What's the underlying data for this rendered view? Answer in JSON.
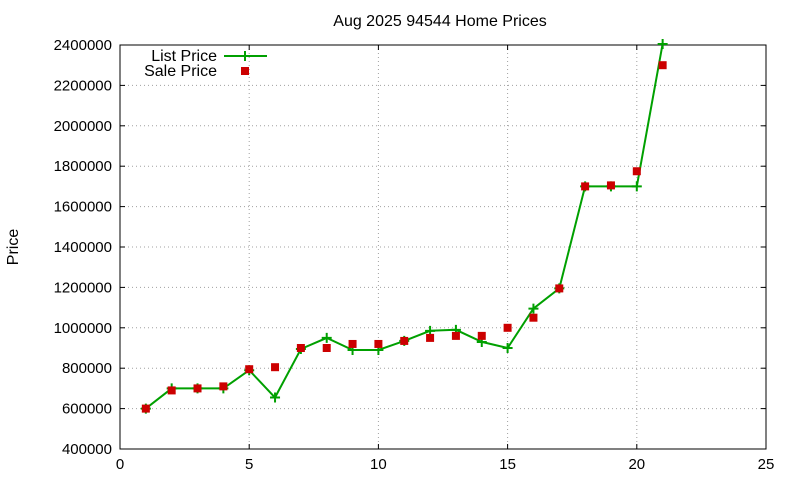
{
  "chart_data": {
    "type": "line",
    "title": "Aug 2025 94544 Home Prices",
    "xlabel": "",
    "ylabel": "Price",
    "xlim": [
      0,
      25
    ],
    "ylim": [
      400000,
      2400000
    ],
    "xticks": [
      "0",
      "5",
      "10",
      "15",
      "20",
      "25"
    ],
    "yticks": [
      "400000",
      "600000",
      "800000",
      "1000000",
      "1200000",
      "1400000",
      "1600000",
      "1800000",
      "2000000",
      "2200000",
      "2400000"
    ],
    "grid": true,
    "legend_position": "top-left",
    "series": [
      {
        "name": "List Price",
        "style": "line+plus",
        "color": "#00a000",
        "x": [
          1,
          2,
          3,
          4,
          5,
          6,
          7,
          8,
          9,
          10,
          11,
          12,
          13,
          14,
          15,
          16,
          17,
          18,
          19,
          20,
          21
        ],
        "y": [
          600000,
          700000,
          700000,
          700000,
          790000,
          655000,
          895000,
          950000,
          890000,
          890000,
          935000,
          985000,
          990000,
          930000,
          900000,
          1095000,
          1195000,
          1700000,
          1700000,
          1700000,
          2405000
        ]
      },
      {
        "name": "Sale Price",
        "style": "square",
        "color": "#cc0000",
        "x": [
          1,
          2,
          3,
          4,
          5,
          6,
          7,
          8,
          9,
          10,
          11,
          12,
          13,
          14,
          15,
          16,
          17,
          18,
          19,
          20,
          21
        ],
        "y": [
          600000,
          690000,
          700000,
          710000,
          795000,
          805000,
          900000,
          900000,
          920000,
          920000,
          935000,
          950000,
          960000,
          960000,
          1000000,
          1050000,
          1195000,
          1700000,
          1705000,
          1775000,
          2300000
        ]
      }
    ]
  }
}
